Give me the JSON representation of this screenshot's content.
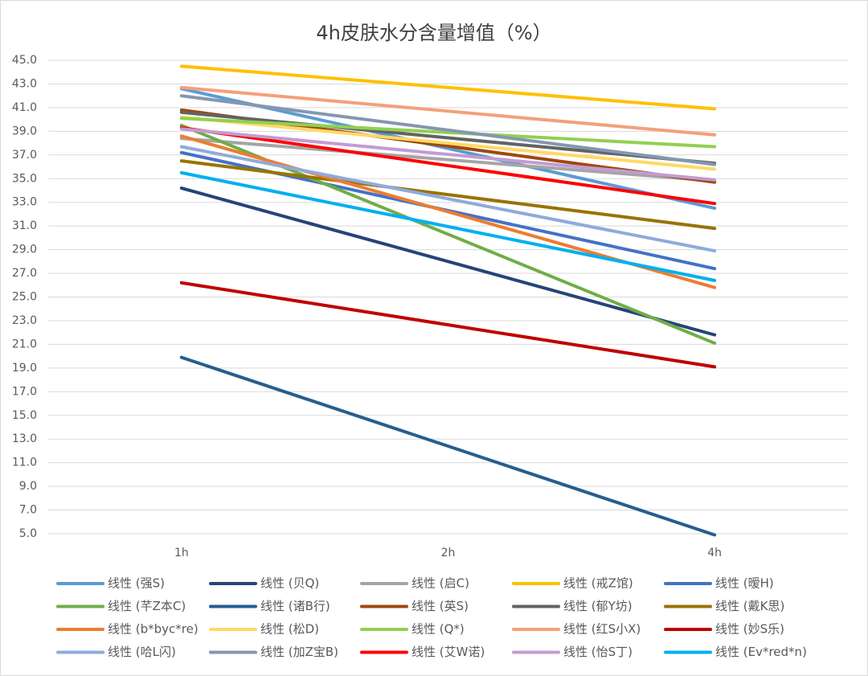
{
  "chart_data": {
    "type": "line",
    "title": "4h皮肤水分含量增值（%）",
    "categories": [
      "1h",
      "2h",
      "4h"
    ],
    "ylim": [
      5,
      45
    ],
    "yticks": [
      {
        "value": 5,
        "label": "5.0"
      },
      {
        "value": 7,
        "label": "7.0"
      },
      {
        "value": 9,
        "label": "9.0"
      },
      {
        "value": 11,
        "label": "11.0"
      },
      {
        "value": 13,
        "label": "13.0"
      },
      {
        "value": 15,
        "label": "15.0"
      },
      {
        "value": 17,
        "label": "17.0"
      },
      {
        "value": 19,
        "label": "19.0"
      },
      {
        "value": 21,
        "label": "21.0"
      },
      {
        "value": 23,
        "label": "23.0"
      },
      {
        "value": 25,
        "label": "25.0"
      },
      {
        "value": 27,
        "label": "27.0"
      },
      {
        "value": 29,
        "label": "29.0"
      },
      {
        "value": 31,
        "label": "31.0"
      },
      {
        "value": 33,
        "label": "33.0"
      },
      {
        "value": 35,
        "label": "35.0"
      },
      {
        "value": 37,
        "label": "37.0"
      },
      {
        "value": 39,
        "label": "39.0"
      },
      {
        "value": 41,
        "label": "41.0"
      },
      {
        "value": 43,
        "label": "43.0"
      },
      {
        "value": 45,
        "label": "45.0"
      }
    ],
    "grid": true,
    "series": [
      {
        "name": "线性 (强S)",
        "color": "#5b9bd5",
        "values": [
          42.6,
          37.55,
          32.5
        ]
      },
      {
        "name": "线性 (贝Q)",
        "color": "#264478",
        "values": [
          34.2,
          28,
          21.8
        ]
      },
      {
        "name": "线性 (启C)",
        "color": "#a5a5a5",
        "values": [
          38.4,
          36.6,
          34.8
        ]
      },
      {
        "name": "线性 (戒Z馆)",
        "color": "#ffc000",
        "values": [
          44.5,
          42.7,
          40.9
        ]
      },
      {
        "name": "线性 (暧H)",
        "color": "#4472c4",
        "values": [
          37.2,
          32.3,
          27.4
        ]
      },
      {
        "name": "线性 (芊Z本C)",
        "color": "#70ad47",
        "values": [
          39.5,
          30.3,
          21.1
        ]
      },
      {
        "name": "线性 (诸B行)",
        "color": "#255e91",
        "values": [
          19.9,
          12.4,
          4.9
        ]
      },
      {
        "name": "线性 (英S)",
        "color": "#9e480e",
        "values": [
          40.8,
          37.75,
          34.7
        ]
      },
      {
        "name": "线性 (郁Y坊)",
        "color": "#636363",
        "values": [
          40.6,
          38.45,
          36.3
        ]
      },
      {
        "name": "线性 (戴K思)",
        "color": "#997300",
        "values": [
          36.5,
          33.65,
          30.8
        ]
      },
      {
        "name": "线性 (b*byc*re)",
        "color": "#ed7d31",
        "values": [
          38.6,
          32.2,
          25.8
        ]
      },
      {
        "name": "线性 (松D)",
        "color": "#ffd966",
        "values": [
          40.2,
          38,
          35.8
        ]
      },
      {
        "name": "线性 (Q*)",
        "color": "#92d050",
        "values": [
          40.1,
          38.9,
          37.7
        ]
      },
      {
        "name": "线性 (红S小X)",
        "color": "#f4a07a",
        "values": [
          42.7,
          40.7,
          38.7
        ]
      },
      {
        "name": "线性 (妙S乐)",
        "color": "#c00000",
        "values": [
          26.2,
          22.65,
          19.1
        ]
      },
      {
        "name": "线性 (哈L闪)",
        "color": "#8faadc",
        "values": [
          37.7,
          33.3,
          28.9
        ]
      },
      {
        "name": "线性 (加Z宝B)",
        "color": "#8497b0",
        "values": [
          42.0,
          39.1,
          36.2
        ]
      },
      {
        "name": "线性 (艾W诺)",
        "color": "#ff0000",
        "values": [
          39.3,
          36.1,
          32.9
        ]
      },
      {
        "name": "线性 (怡S丁)",
        "color": "#c39bd3",
        "values": [
          39.2,
          37.05,
          34.9
        ]
      },
      {
        "name": "线性 (Ev*red*n)",
        "color": "#00b0f0",
        "values": [
          35.5,
          30.95,
          26.4
        ]
      }
    ]
  }
}
